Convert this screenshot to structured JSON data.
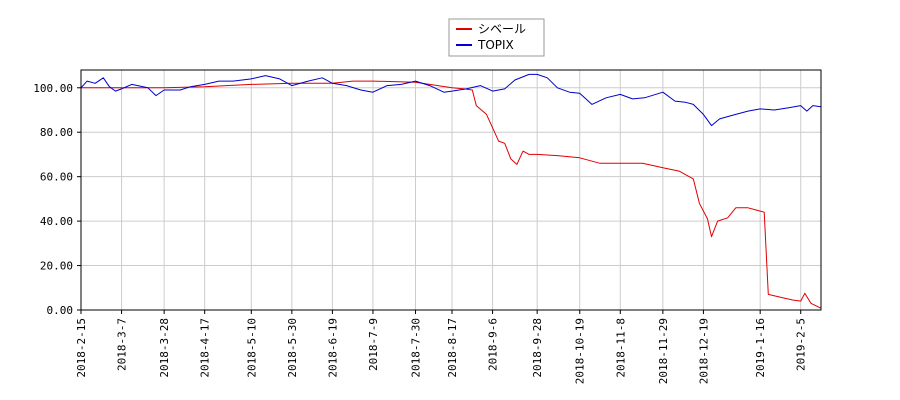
{
  "chart_data": {
    "type": "line",
    "title": "",
    "xlabel": "",
    "ylabel": "",
    "ylim": [
      0,
      108
    ],
    "y_ticks": [
      "0.00",
      "20.00",
      "40.00",
      "60.00",
      "80.00",
      "100.00"
    ],
    "y_tick_values": [
      0,
      20,
      40,
      60,
      80,
      100
    ],
    "x_ticks": [
      "2018-2-15",
      "2018-3-7",
      "2018-3-28",
      "2018-4-17",
      "2018-5-10",
      "2018-5-30",
      "2018-6-19",
      "2018-7-9",
      "2018-7-30",
      "2018-8-17",
      "2018-9-6",
      "2018-9-28",
      "2018-10-19",
      "2018-11-8",
      "2018-11-29",
      "2018-12-19",
      "2019-1-16",
      "2019-2-5"
    ],
    "x_range": [
      "2018-2-15",
      "2019-2-15"
    ],
    "grid": true,
    "legend_position": "top-center",
    "series": [
      {
        "name": "シベール",
        "color": "#e00000",
        "points": [
          [
            "2018-2-15",
            100.0
          ],
          [
            "2018-3-7",
            100.0
          ],
          [
            "2018-3-28",
            100.0
          ],
          [
            "2018-4-17",
            100.5
          ],
          [
            "2018-5-10",
            101.5
          ],
          [
            "2018-5-30",
            102.0
          ],
          [
            "2018-6-19",
            102.0
          ],
          [
            "2018-6-29",
            103.0
          ],
          [
            "2018-7-9",
            103.0
          ],
          [
            "2018-7-30",
            102.5
          ],
          [
            "2018-8-17",
            100.0
          ],
          [
            "2018-8-23",
            99.5
          ],
          [
            "2018-8-27",
            99.0
          ],
          [
            "2018-8-29",
            92.0
          ],
          [
            "2018-9-3",
            88.0
          ],
          [
            "2018-9-6",
            82.0
          ],
          [
            "2018-9-9",
            76.0
          ],
          [
            "2018-9-12",
            75.0
          ],
          [
            "2018-9-15",
            68.0
          ],
          [
            "2018-9-18",
            65.5
          ],
          [
            "2018-9-21",
            71.5
          ],
          [
            "2018-9-24",
            70.0
          ],
          [
            "2018-9-28",
            70.0
          ],
          [
            "2018-10-8",
            69.5
          ],
          [
            "2018-10-19",
            68.5
          ],
          [
            "2018-10-29",
            66.0
          ],
          [
            "2018-11-8",
            66.0
          ],
          [
            "2018-11-19",
            66.0
          ],
          [
            "2018-11-29",
            64.0
          ],
          [
            "2018-12-7",
            62.5
          ],
          [
            "2018-12-14",
            59.0
          ],
          [
            "2018-12-17",
            48.0
          ],
          [
            "2018-12-21",
            41.0
          ],
          [
            "2018-12-23",
            33.0
          ],
          [
            "2018-12-26",
            40.0
          ],
          [
            "2018-12-31",
            41.5
          ],
          [
            "2019-1-4",
            46.0
          ],
          [
            "2019-1-10",
            46.0
          ],
          [
            "2019-1-14",
            45.0
          ],
          [
            "2019-1-18",
            44.0
          ],
          [
            "2019-1-20",
            7.0
          ],
          [
            "2019-1-25",
            6.0
          ],
          [
            "2019-2-1",
            4.5
          ],
          [
            "2019-2-5",
            4.0
          ],
          [
            "2019-2-7",
            7.5
          ],
          [
            "2019-2-10",
            3.0
          ],
          [
            "2019-2-15",
            0.8
          ]
        ]
      },
      {
        "name": "TOPIX",
        "color": "#0000cc",
        "points": [
          [
            "2018-2-15",
            100.0
          ],
          [
            "2018-2-18",
            103.0
          ],
          [
            "2018-2-22",
            102.0
          ],
          [
            "2018-2-26",
            104.5
          ],
          [
            "2018-3-1",
            100.5
          ],
          [
            "2018-3-4",
            98.5
          ],
          [
            "2018-3-7",
            99.5
          ],
          [
            "2018-3-12",
            101.5
          ],
          [
            "2018-3-20",
            100.0
          ],
          [
            "2018-3-24",
            96.5
          ],
          [
            "2018-3-28",
            99.0
          ],
          [
            "2018-4-5",
            99.0
          ],
          [
            "2018-4-10",
            100.5
          ],
          [
            "2018-4-17",
            101.5
          ],
          [
            "2018-4-24",
            103.0
          ],
          [
            "2018-5-1",
            103.0
          ],
          [
            "2018-5-10",
            104.0
          ],
          [
            "2018-5-17",
            105.5
          ],
          [
            "2018-5-24",
            104.0
          ],
          [
            "2018-5-30",
            101.0
          ],
          [
            "2018-6-7",
            103.0
          ],
          [
            "2018-6-14",
            104.5
          ],
          [
            "2018-6-19",
            102.0
          ],
          [
            "2018-6-26",
            101.0
          ],
          [
            "2018-7-3",
            99.0
          ],
          [
            "2018-7-9",
            98.0
          ],
          [
            "2018-7-16",
            101.0
          ],
          [
            "2018-7-23",
            101.5
          ],
          [
            "2018-7-30",
            103.0
          ],
          [
            "2018-8-6",
            101.0
          ],
          [
            "2018-8-13",
            98.0
          ],
          [
            "2018-8-17",
            98.5
          ],
          [
            "2018-8-24",
            99.5
          ],
          [
            "2018-8-31",
            101.0
          ],
          [
            "2018-9-6",
            98.5
          ],
          [
            "2018-9-12",
            99.5
          ],
          [
            "2018-9-17",
            103.5
          ],
          [
            "2018-9-24",
            106.0
          ],
          [
            "2018-9-28",
            106.0
          ],
          [
            "2018-10-3",
            104.5
          ],
          [
            "2018-10-8",
            100.0
          ],
          [
            "2018-10-14",
            98.0
          ],
          [
            "2018-10-19",
            97.5
          ],
          [
            "2018-10-25",
            92.5
          ],
          [
            "2018-11-1",
            95.5
          ],
          [
            "2018-11-8",
            97.0
          ],
          [
            "2018-11-14",
            95.0
          ],
          [
            "2018-11-20",
            95.5
          ],
          [
            "2018-11-29",
            98.0
          ],
          [
            "2018-12-5",
            94.0
          ],
          [
            "2018-12-10",
            93.5
          ],
          [
            "2018-12-14",
            92.5
          ],
          [
            "2018-12-19",
            88.0
          ],
          [
            "2018-12-23",
            83.0
          ],
          [
            "2018-12-27",
            86.0
          ],
          [
            "2019-1-4",
            88.0
          ],
          [
            "2019-1-10",
            89.5
          ],
          [
            "2019-1-16",
            90.5
          ],
          [
            "2019-1-23",
            90.0
          ],
          [
            "2019-1-30",
            91.0
          ],
          [
            "2019-2-5",
            92.0
          ],
          [
            "2019-2-8",
            89.5
          ],
          [
            "2019-2-11",
            92.0
          ],
          [
            "2019-2-15",
            91.5
          ]
        ]
      }
    ]
  }
}
